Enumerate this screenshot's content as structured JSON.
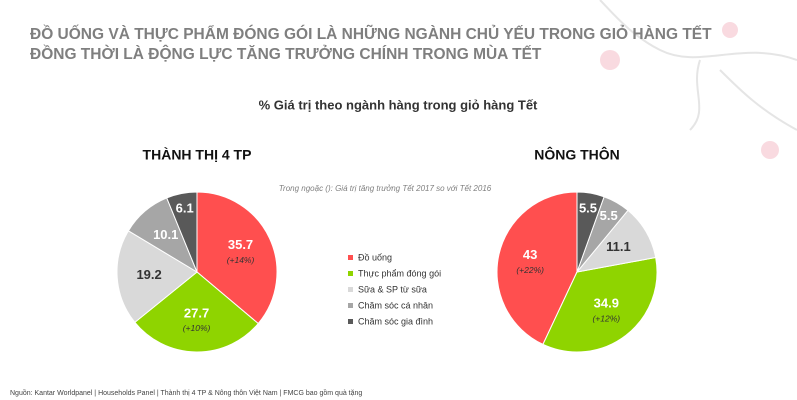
{
  "title_lines": [
    "ĐỒ UỐNG VÀ THỰC PHẨM ĐÓNG GÓI LÀ NHỮNG NGÀNH CHỦ YẾU TRONG GIỎ HÀNG TẾT",
    "ĐỒNG THỜI LÀ ĐỘNG LỰC TĂNG TRƯỞNG CHÍNH TRONG MÙA TẾT"
  ],
  "subtitle": "% Giá trị theo ngành hàng trong giỏ hàng Tết",
  "note": "Trong ngoặc (): Giá trị tăng trưởng Tết 2017 so với Tết 2016",
  "source": "Nguồn: Kantar Worldpanel | Households Panel | Thành thị 4 TP & Nông thôn Việt Nam | FMCG bao gồm quà tặng",
  "chart_data": [
    {
      "type": "pie",
      "title": "THÀNH THỊ 4 TP",
      "direction": "clockwise",
      "categories": [
        "Đồ uống",
        "Thực phẩm đóng gói",
        "Sữa & SP từ sữa",
        "Chăm sóc cá nhân",
        "Chăm sóc gia đình"
      ],
      "values": [
        35.7,
        27.7,
        19.2,
        10.1,
        6.1
      ],
      "growth_labels": [
        "(+14%)",
        "(+10%)",
        null,
        null,
        null
      ],
      "colors": [
        "#ff4f4f",
        "#8fd400",
        "#d9d9d9",
        "#a6a6a6",
        "#595959"
      ]
    },
    {
      "type": "pie",
      "title": "NÔNG THÔN",
      "direction": "counterclockwise",
      "categories": [
        "Đồ uống",
        "Thực phẩm đóng gói",
        "Sữa & SP từ sữa",
        "Chăm sóc cá nhân",
        "Chăm sóc gia đình"
      ],
      "values": [
        43,
        34.9,
        11.1,
        5.5,
        5.5
      ],
      "growth_labels": [
        "(+22%)",
        "(+12%)",
        null,
        null,
        null
      ],
      "colors": [
        "#ff4f4f",
        "#8fd400",
        "#d9d9d9",
        "#a6a6a6",
        "#595959"
      ]
    }
  ]
}
